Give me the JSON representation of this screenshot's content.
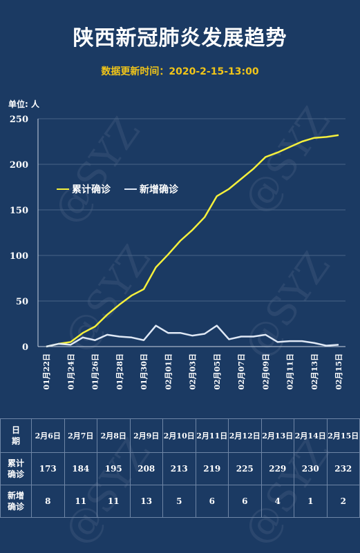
{
  "header": {
    "title": "陕西新冠肺炎发展趋势",
    "update_time": "数据更新时间：2020-2-15-13:00"
  },
  "watermark": "@SYZ",
  "chart_data": {
    "type": "line",
    "unit_label": "单位: 人",
    "ylim": [
      0,
      250
    ],
    "yticks": [
      0,
      50,
      100,
      150,
      200,
      250
    ],
    "x": [
      "01月22日",
      "01月23日",
      "01月24日",
      "01月25日",
      "01月26日",
      "01月27日",
      "01月28日",
      "01月29日",
      "01月30日",
      "01月31日",
      "02月01日",
      "02月02日",
      "02月03日",
      "02月04日",
      "02月05日",
      "02月06日",
      "02月07日",
      "02月08日",
      "02月09日",
      "02月10日",
      "02月11日",
      "02月12日",
      "02月13日",
      "02月14日",
      "02月15日"
    ],
    "xtick_labels": [
      "01月22日",
      "01月24日",
      "01月26日",
      "01月28日",
      "01月30日",
      "02月01日",
      "02月03日",
      "02月05日",
      "02月07日",
      "02月09日",
      "02月11日",
      "02月13日",
      "02月15日"
    ],
    "series": [
      {
        "name": "累计确诊",
        "color": "#f5f03c",
        "values": [
          0,
          3,
          5,
          15,
          22,
          35,
          46,
          56,
          63,
          87,
          101,
          116,
          128,
          142,
          165,
          173,
          184,
          195,
          208,
          213,
          219,
          225,
          229,
          230,
          232
        ]
      },
      {
        "name": "新增确诊",
        "color": "#dfe8f5",
        "values": [
          0,
          3,
          2,
          10,
          7,
          13,
          11,
          10,
          7,
          23,
          15,
          15,
          12,
          14,
          23,
          8,
          11,
          11,
          13,
          5,
          6,
          6,
          4,
          1,
          2
        ]
      }
    ],
    "grid": "horizontal",
    "legend_position": "top-left"
  },
  "table": {
    "row_headers": [
      "日\n期",
      "累计\n确诊",
      "新增\n确诊"
    ],
    "dates": [
      "2月6日",
      "2月7日",
      "2月8日",
      "2月9日",
      "2月10日",
      "2月11日",
      "2月12日",
      "2月13日",
      "2月14日",
      "2月15日"
    ],
    "cumulative": [
      "173",
      "184",
      "195",
      "208",
      "213",
      "219",
      "225",
      "229",
      "230",
      "232"
    ],
    "new": [
      "8",
      "11",
      "11",
      "13",
      "5",
      "6",
      "6",
      "4",
      "1",
      "2"
    ]
  }
}
